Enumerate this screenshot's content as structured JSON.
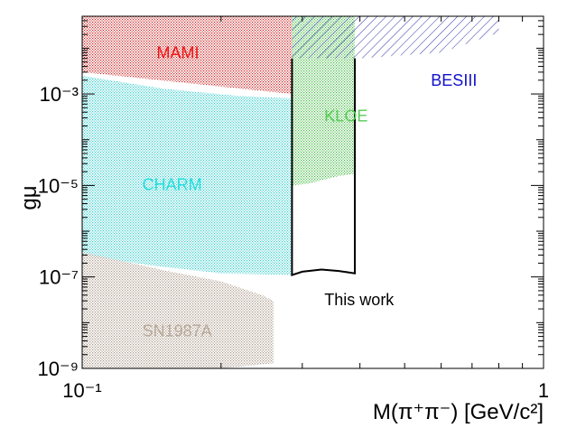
{
  "chart_data": {
    "type": "area",
    "title": "",
    "xlabel": "M(π⁺π⁻) [GeV/c²]",
    "ylabel": "gμ",
    "xscale": "log",
    "yscale": "log",
    "xlim": [
      0.1,
      1.0
    ],
    "ylim": [
      1e-09,
      0.05
    ],
    "grid": false,
    "x_ticks": [
      {
        "value": 0.1,
        "label": "10⁻¹"
      },
      {
        "value": 1.0,
        "label": "1"
      }
    ],
    "y_ticks": [
      {
        "value": 1e-09,
        "label": "10⁻⁹"
      },
      {
        "value": 1e-07,
        "label": "10⁻⁷"
      },
      {
        "value": 1e-05,
        "label": "10⁻⁵"
      },
      {
        "value": 0.001,
        "label": "10⁻³"
      }
    ],
    "regions": [
      {
        "name": "MAMI",
        "color": "#cc2222",
        "label": "MAMI",
        "label_at": [
          0.145,
          0.006
        ],
        "x": [
          0.1,
          0.285,
          0.285,
          0.1
        ],
        "y": [
          0.05,
          0.05,
          0.001,
          0.003
        ]
      },
      {
        "name": "CHARM",
        "color": "#33cccc",
        "label": "CHARM",
        "label_at": [
          0.135,
          8e-06
        ],
        "x": [
          0.1,
          0.15,
          0.22,
          0.285,
          0.285,
          0.2,
          0.14,
          0.1
        ],
        "y": [
          0.0025,
          0.0013,
          0.0009,
          0.0008,
          1.1e-07,
          1.2e-07,
          1.8e-07,
          3e-07
        ]
      },
      {
        "name": "SN1987A",
        "color": "#aa9988",
        "label": "SN1987A",
        "label_at": [
          0.135,
          5e-09
        ],
        "x": [
          0.1,
          0.15,
          0.2,
          0.245,
          0.26,
          0.26,
          0.2,
          0.1
        ],
        "y": [
          3.5e-07,
          1.4e-07,
          8e-08,
          4e-08,
          3e-08,
          1.3e-09,
          1e-09,
          1e-09
        ]
      },
      {
        "name": "KLOE",
        "color": "#44bb44",
        "label": "KLOE",
        "label_at": [
          0.335,
          0.00025
        ],
        "x": [
          0.285,
          0.39,
          0.39,
          0.36,
          0.33,
          0.31,
          0.285
        ],
        "y": [
          0.05,
          0.05,
          1.8e-05,
          1.6e-05,
          1.3e-05,
          1.1e-05,
          1e-05
        ]
      },
      {
        "name": "BESIII",
        "color": "#3333aa",
        "label": "BESIII",
        "label_at": [
          0.57,
          0.0015
        ],
        "x": [
          0.285,
          0.8,
          0.8,
          0.6,
          0.4,
          0.285
        ],
        "y": [
          0.05,
          0.05,
          0.022,
          0.008,
          0.006,
          0.006
        ]
      }
    ],
    "this_work": {
      "label": "This work",
      "label_at": [
        0.335,
        2.4e-08
      ],
      "color": "#000000",
      "x": [
        0.285,
        0.285,
        0.3,
        0.33,
        0.36,
        0.39,
        0.39
      ],
      "y": [
        0.006,
        1.1e-07,
        1.3e-07,
        1.45e-07,
        1.35e-07,
        1.2e-07,
        0.006
      ]
    },
    "label_colors": {
      "MAMI": "#ee1111",
      "CHARM": "#22dddd",
      "SN1987A": "#b8a898",
      "KLOE": "#55cc55",
      "BESIII": "#1111cc",
      "this_work": "#000000"
    }
  }
}
